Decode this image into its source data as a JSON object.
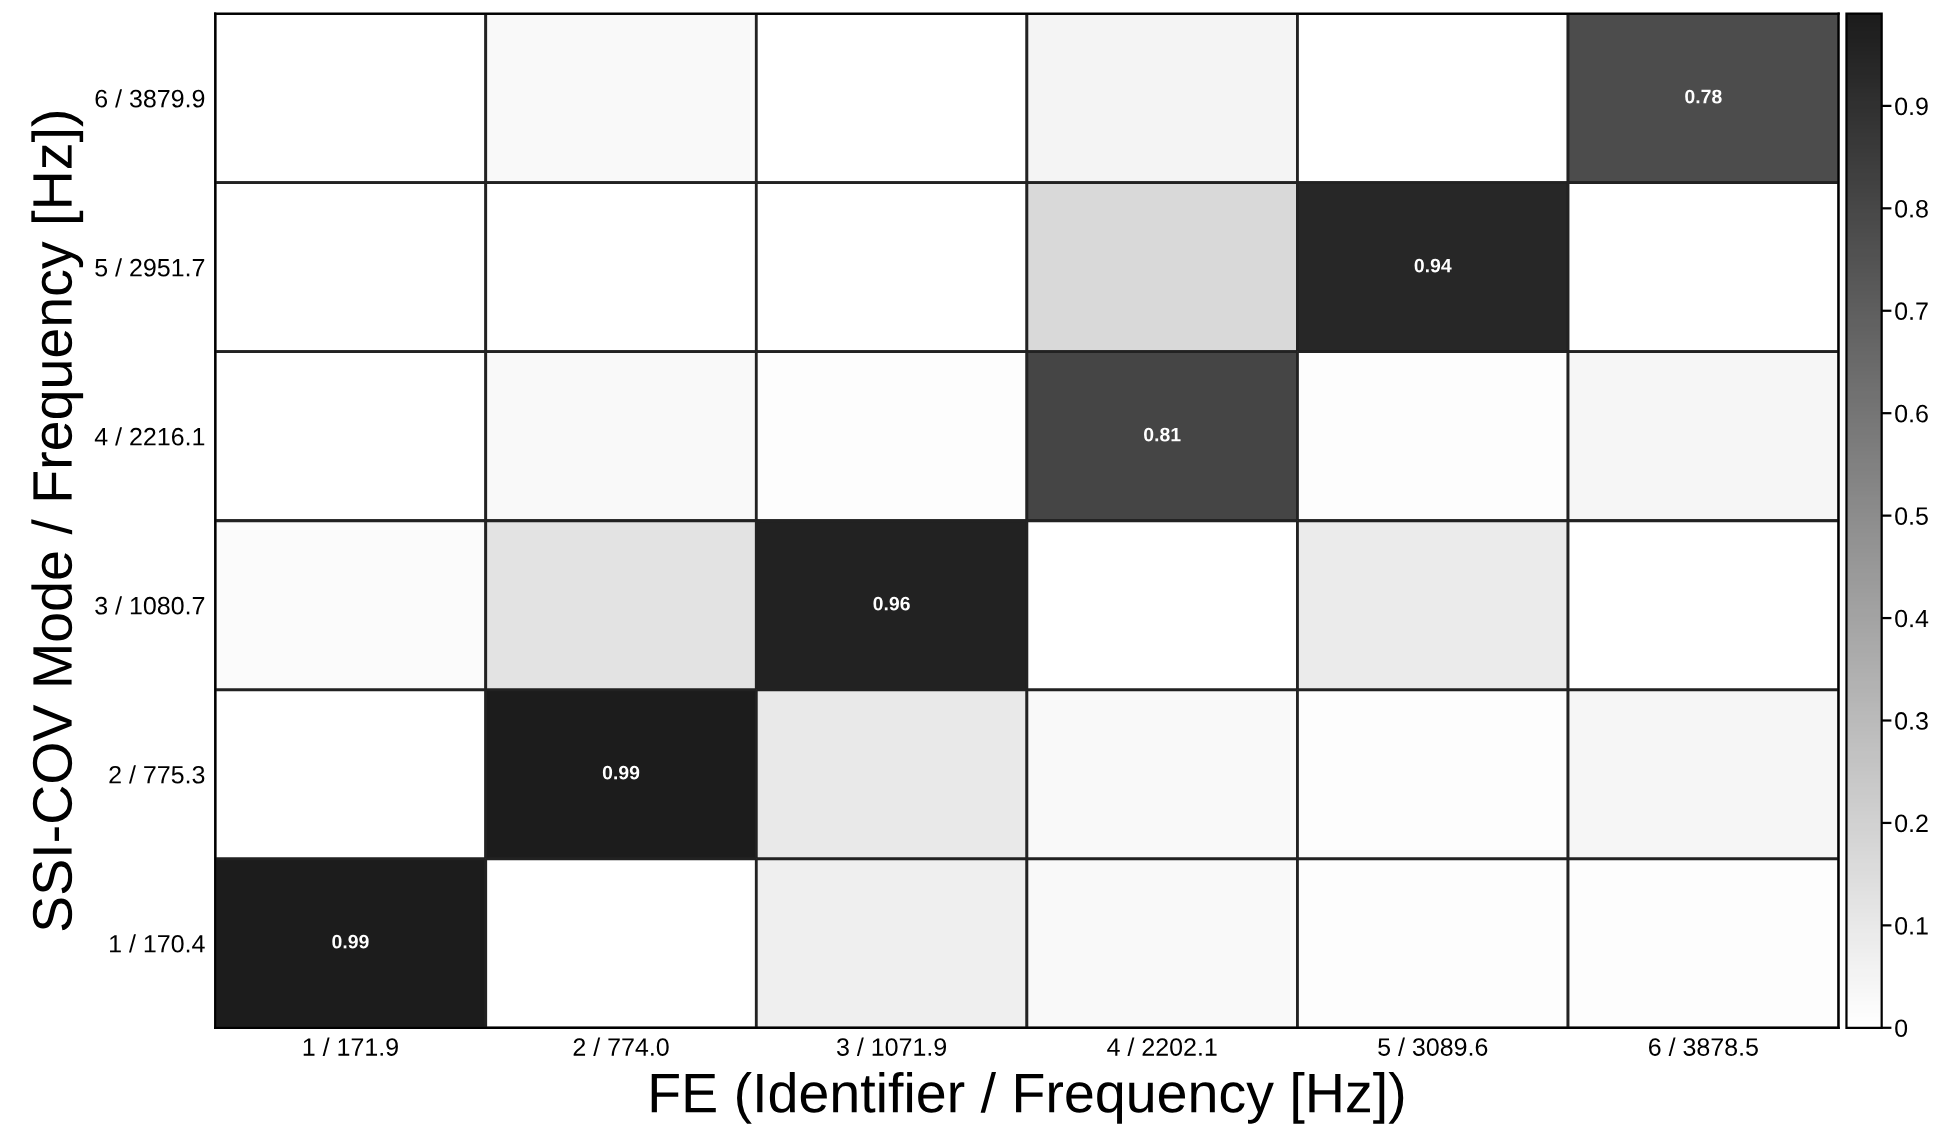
{
  "chart_data": {
    "type": "heatmap",
    "xlabel": "FE (Identifier / Frequency [Hz])",
    "ylabel": "SSI-COV Mode / Frequency [Hz])",
    "categories": [
      "1 / 171.9",
      "2 / 774.0",
      "3 / 1071.9",
      "4 / 2202.1",
      "5 / 3089.6",
      "6 / 3878.5"
    ],
    "y_categories": [
      "6 / 3879.9",
      "5 / 2951.7",
      "4 / 2216.1",
      "3 / 1080.7",
      "2 / 775.3",
      "1 / 170.4"
    ],
    "cells": [
      [
        0,
        0.03,
        0,
        0.05,
        0,
        0.78
      ],
      [
        0,
        0,
        0,
        0.17,
        0.94,
        0
      ],
      [
        0,
        0.03,
        0.01,
        0.81,
        0.01,
        0.04
      ],
      [
        0.02,
        0.12,
        0.96,
        0,
        0.09,
        0
      ],
      [
        0,
        0.99,
        0.1,
        0.03,
        0.01,
        0.04
      ],
      [
        0.99,
        0,
        0.07,
        0.03,
        0.01,
        0.01
      ]
    ],
    "cell_labels": [
      [
        null,
        null,
        null,
        null,
        null,
        "0.78"
      ],
      [
        null,
        null,
        null,
        null,
        "0.94",
        null
      ],
      [
        null,
        null,
        null,
        "0.81",
        null,
        null
      ],
      [
        null,
        null,
        "0.96",
        null,
        null,
        null
      ],
      [
        null,
        "0.99",
        null,
        null,
        null,
        null
      ],
      [
        "0.99",
        null,
        null,
        null,
        null,
        null
      ]
    ],
    "clim": [
      0,
      0.99
    ],
    "cticks": [
      0,
      0.1,
      0.2,
      0.3,
      0.4,
      0.5,
      0.6,
      0.7,
      0.8,
      0.9
    ]
  }
}
